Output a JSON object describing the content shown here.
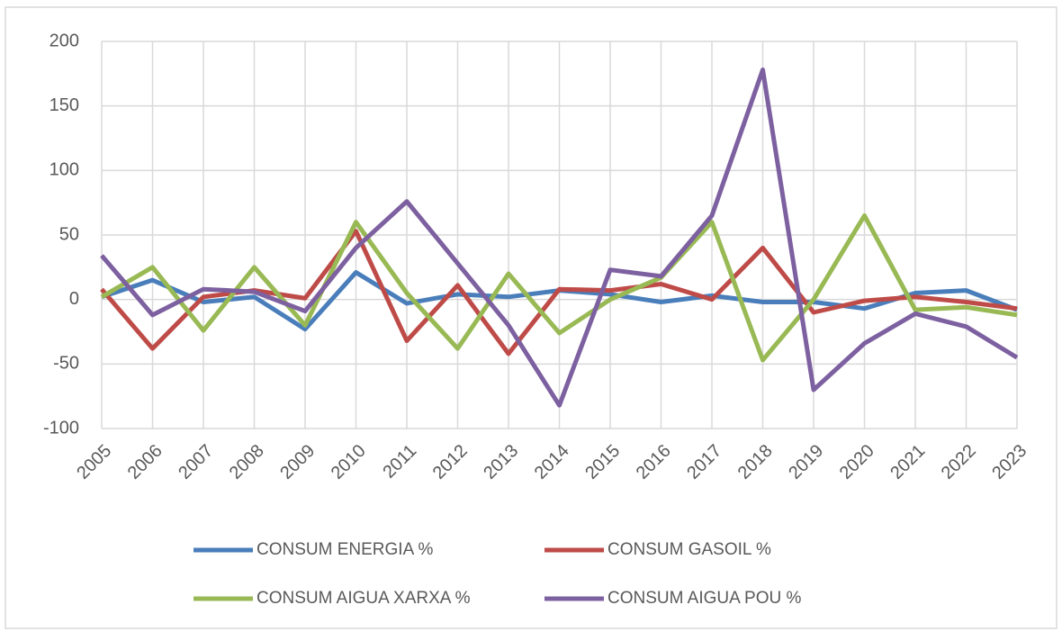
{
  "chart_data": {
    "type": "line",
    "categories": [
      "2005",
      "2006",
      "2007",
      "2008",
      "2009",
      "2010",
      "2011",
      "2012",
      "2013",
      "2014",
      "2015",
      "2016",
      "2017",
      "2018",
      "2019",
      "2020",
      "2021",
      "2022",
      "2023"
    ],
    "series": [
      {
        "name": "CONSUM ENERGIA %",
        "color": "#4a7ebb",
        "values": [
          2,
          15,
          -2,
          2,
          -23,
          21,
          -3,
          4,
          2,
          7,
          4,
          -2,
          3,
          -2,
          -2,
          -7,
          5,
          7,
          -8
        ]
      },
      {
        "name": "CONSUM GASOIL %",
        "color": "#be4b48",
        "values": [
          8,
          -38,
          2,
          7,
          1,
          53,
          -32,
          11,
          -42,
          8,
          7,
          12,
          0,
          40,
          -10,
          -1,
          2,
          -2,
          -7
        ]
      },
      {
        "name": "CONSUM AIGUA XARXA %",
        "color": "#98b954",
        "values": [
          2,
          25,
          -24,
          25,
          -20,
          60,
          5,
          -38,
          20,
          -26,
          0,
          17,
          60,
          -47,
          0,
          65,
          -8,
          -6,
          -12
        ]
      },
      {
        "name": "CONSUM AIGUA POU %",
        "color": "#7d60a0",
        "values": [
          34,
          -12,
          8,
          6,
          -9,
          40,
          76,
          28,
          -20,
          -82,
          23,
          18,
          65,
          178,
          -70,
          -34,
          -11,
          -21,
          -45
        ]
      }
    ],
    "ylim": [
      -100,
      200
    ],
    "yticks": [
      -100,
      -50,
      0,
      50,
      100,
      150,
      200
    ],
    "grid": true,
    "legend": "bottom"
  }
}
